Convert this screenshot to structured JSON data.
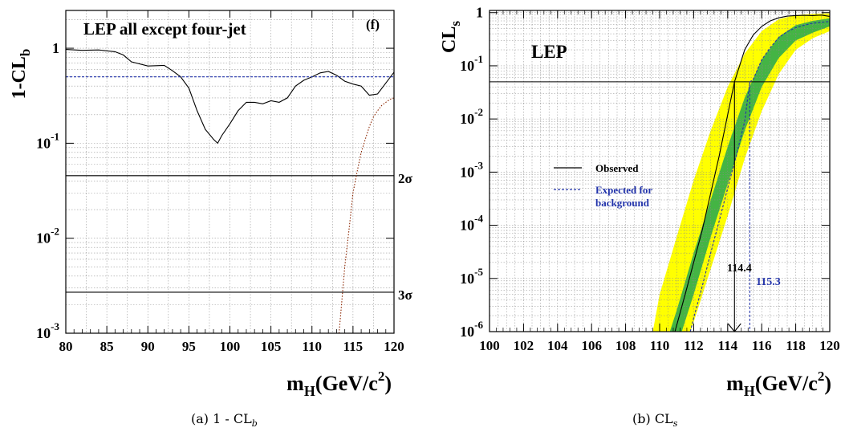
{
  "figure": {
    "caption_a": "(a) 1 - CL",
    "caption_a_sub": "b",
    "caption_b": "(b) CL",
    "caption_b_sub": "s"
  },
  "chart_data": [
    {
      "type": "line",
      "panel_tag": "(f)",
      "title": "LEP all except four-jet",
      "ylabel_main": "1-CL",
      "ylabel_sub": "b",
      "xlabel_main": "m",
      "xlabel_sub": "H",
      "xlabel_unit": "(GeV/c",
      "xlabel_sup": "2",
      "xlabel_close": ")",
      "xlim": [
        80,
        120
      ],
      "ylim": [
        0.001,
        2.5
      ],
      "yscale": "log",
      "x_ticks": [
        "80",
        "85",
        "90",
        "95",
        "100",
        "105",
        "110",
        "115",
        "120"
      ],
      "y_ticks": [
        {
          "value": 1,
          "base": "1",
          "exp": ""
        },
        {
          "value": 0.1,
          "base": "10",
          "exp": "-1"
        },
        {
          "value": 0.01,
          "base": "10",
          "exp": "-2"
        },
        {
          "value": 0.001,
          "base": "10",
          "exp": "-3"
        }
      ],
      "grid": true,
      "reference_lines": [
        {
          "label": "2σ",
          "y": 0.0455
        },
        {
          "label": "3σ",
          "y": 0.0027
        }
      ],
      "series": [
        {
          "style": "solid",
          "color": "#000000",
          "x": [
            80,
            82,
            84,
            85,
            86,
            87,
            88,
            90,
            92,
            93,
            94,
            95,
            96,
            97,
            98,
            98.5,
            99,
            100,
            101,
            102,
            103,
            104,
            105,
            106,
            107,
            108,
            109,
            110,
            111,
            112,
            113,
            114,
            115,
            116,
            117,
            118,
            119,
            120
          ],
          "y": [
            0.97,
            0.95,
            0.96,
            0.94,
            0.92,
            0.85,
            0.72,
            0.65,
            0.66,
            0.58,
            0.5,
            0.38,
            0.22,
            0.14,
            0.11,
            0.1,
            0.12,
            0.16,
            0.22,
            0.27,
            0.27,
            0.26,
            0.28,
            0.27,
            0.3,
            0.4,
            0.46,
            0.5,
            0.55,
            0.57,
            0.52,
            0.45,
            0.42,
            0.4,
            0.32,
            0.33,
            0.43,
            0.56
          ]
        },
        {
          "style": "dashed",
          "color": "#2233aa",
          "x": [
            80,
            120
          ],
          "y": [
            0.5,
            0.5
          ]
        },
        {
          "style": "dotted",
          "color": "#8b2500",
          "x": [
            113.3,
            113.6,
            114,
            114.5,
            115,
            115.5,
            116,
            116.5,
            117,
            117.5,
            118,
            118.5,
            119,
            119.5,
            120
          ],
          "y": [
            0.001,
            0.002,
            0.005,
            0.012,
            0.03,
            0.05,
            0.08,
            0.11,
            0.15,
            0.19,
            0.22,
            0.25,
            0.27,
            0.29,
            0.3
          ]
        }
      ]
    },
    {
      "type": "line",
      "title": "LEP",
      "ylabel_main": "CL",
      "ylabel_sub": "s",
      "xlabel_main": "m",
      "xlabel_sub": "H",
      "xlabel_unit": "(GeV/c",
      "xlabel_sup": "2",
      "xlabel_close": ")",
      "xlim": [
        100,
        120
      ],
      "ylim": [
        1e-06,
        1.1
      ],
      "yscale": "log",
      "x_ticks": [
        "100",
        "102",
        "104",
        "106",
        "108",
        "110",
        "112",
        "114",
        "116",
        "118",
        "120"
      ],
      "y_ticks": [
        {
          "value": 1,
          "base": "1",
          "exp": ""
        },
        {
          "value": 0.1,
          "base": "10",
          "exp": "-1"
        },
        {
          "value": 0.01,
          "base": "10",
          "exp": "-2"
        },
        {
          "value": 0.001,
          "base": "10",
          "exp": "-3"
        },
        {
          "value": 0.0001,
          "base": "10",
          "exp": "-4"
        },
        {
          "value": 1e-05,
          "base": "10",
          "exp": "-5"
        },
        {
          "value": 1e-06,
          "base": "10",
          "exp": "-6"
        }
      ],
      "grid": true,
      "reference_lines": [
        {
          "label": "",
          "y": 0.05
        }
      ],
      "legend": {
        "placement": "middle-left",
        "entries": [
          {
            "label": "Observed",
            "style": "solid",
            "color": "#000000"
          },
          {
            "label_line1": "Expected for",
            "label_line2": "background",
            "style": "dashed",
            "color": "#2233aa"
          }
        ]
      },
      "annotations": [
        {
          "text": "114.4",
          "x": 114.4,
          "color": "#000000"
        },
        {
          "text": "115.3",
          "x": 115.3,
          "color": "#2233aa"
        }
      ],
      "bands": [
        {
          "name": "2-sigma",
          "color": "#ffff00",
          "upper_x": [
            109.6,
            110,
            111,
            112,
            113,
            114,
            115,
            116,
            117,
            118,
            119,
            120
          ],
          "upper_y": [
            1e-06,
            5e-06,
            6e-05,
            0.0007,
            0.006,
            0.04,
            0.17,
            0.45,
            0.75,
            0.9,
            0.95,
            0.97
          ],
          "lower_x": [
            111.8,
            112,
            113,
            114,
            115,
            116,
            117,
            118,
            119,
            120
          ],
          "lower_y": [
            1e-06,
            1.5e-06,
            1.5e-05,
            0.00015,
            0.0018,
            0.014,
            0.07,
            0.2,
            0.33,
            0.45
          ]
        },
        {
          "name": "1-sigma",
          "color": "#44b444",
          "upper_x": [
            110.6,
            111,
            112,
            113,
            114,
            115,
            116,
            117,
            118,
            119,
            120
          ],
          "upper_y": [
            1e-06,
            2.5e-06,
            3e-05,
            0.0003,
            0.003,
            0.025,
            0.13,
            0.35,
            0.58,
            0.7,
            0.78
          ],
          "lower_x": [
            111.3,
            112,
            113,
            114,
            115,
            116,
            117,
            118,
            119,
            120
          ],
          "lower_y": [
            1e-06,
            5e-06,
            6e-05,
            0.0006,
            0.006,
            0.04,
            0.14,
            0.3,
            0.42,
            0.55
          ]
        }
      ],
      "series": [
        {
          "name": "Observed",
          "style": "solid",
          "color": "#000000",
          "x": [
            110.9,
            111.5,
            112,
            112.5,
            113,
            113.5,
            114,
            114.4,
            115,
            115.5,
            116,
            116.5,
            117,
            117.5,
            118,
            118.5,
            119,
            119.5,
            120
          ],
          "y": [
            1e-06,
            5e-06,
            2e-05,
            8e-05,
            0.0004,
            0.002,
            0.012,
            0.05,
            0.2,
            0.38,
            0.55,
            0.7,
            0.8,
            0.86,
            0.88,
            0.89,
            0.88,
            0.9,
            0.85
          ]
        },
        {
          "name": "Expected for background",
          "style": "dashed",
          "color": "#2233aa",
          "x": [
            111.8,
            112,
            112.5,
            113,
            113.5,
            114,
            114.5,
            115,
            115.3,
            115.5,
            116,
            116.5,
            117,
            117.5,
            118,
            118.5,
            119,
            119.5,
            120
          ],
          "y": [
            1e-06,
            1.8e-06,
            7e-06,
            3e-05,
            0.00012,
            0.0005,
            0.002,
            0.009,
            0.05,
            0.055,
            0.13,
            0.22,
            0.34,
            0.44,
            0.52,
            0.58,
            0.63,
            0.66,
            0.68
          ]
        }
      ]
    }
  ]
}
